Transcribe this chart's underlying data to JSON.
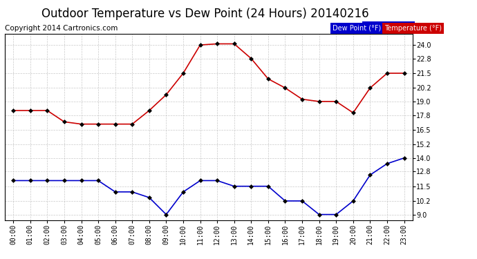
{
  "title": "Outdoor Temperature vs Dew Point (24 Hours) 20140216",
  "copyright": "Copyright 2014 Cartronics.com",
  "hours": [
    "00:00",
    "01:00",
    "02:00",
    "03:00",
    "04:00",
    "05:00",
    "06:00",
    "07:00",
    "08:00",
    "09:00",
    "10:00",
    "11:00",
    "12:00",
    "13:00",
    "14:00",
    "15:00",
    "16:00",
    "17:00",
    "18:00",
    "19:00",
    "20:00",
    "21:00",
    "22:00",
    "23:00"
  ],
  "temperature": [
    18.2,
    18.2,
    18.2,
    17.2,
    17.0,
    17.0,
    17.0,
    17.0,
    18.2,
    19.6,
    21.5,
    24.0,
    24.1,
    24.1,
    22.8,
    21.0,
    20.2,
    19.2,
    19.0,
    19.0,
    18.0,
    20.2,
    21.5,
    21.5
  ],
  "dew_point": [
    12.0,
    12.0,
    12.0,
    12.0,
    12.0,
    12.0,
    11.0,
    11.0,
    10.5,
    9.0,
    11.0,
    12.0,
    12.0,
    11.5,
    11.5,
    11.5,
    10.2,
    10.2,
    9.0,
    9.0,
    10.2,
    12.5,
    13.5,
    14.0
  ],
  "temp_color": "#cc0000",
  "dew_color": "#0000cc",
  "ylim": [
    8.5,
    25.0
  ],
  "yticks": [
    9.0,
    10.2,
    11.5,
    12.8,
    14.0,
    15.2,
    16.5,
    17.8,
    19.0,
    20.2,
    21.5,
    22.8,
    24.0
  ],
  "background_color": "#ffffff",
  "grid_color": "#bbbbbb",
  "legend_dew_bg": "#0000cc",
  "legend_temp_bg": "#cc0000",
  "legend_text_color": "#ffffff",
  "title_fontsize": 12,
  "copyright_fontsize": 7.5,
  "tick_fontsize": 7,
  "marker": "D",
  "markersize": 3,
  "linewidth": 1.2
}
